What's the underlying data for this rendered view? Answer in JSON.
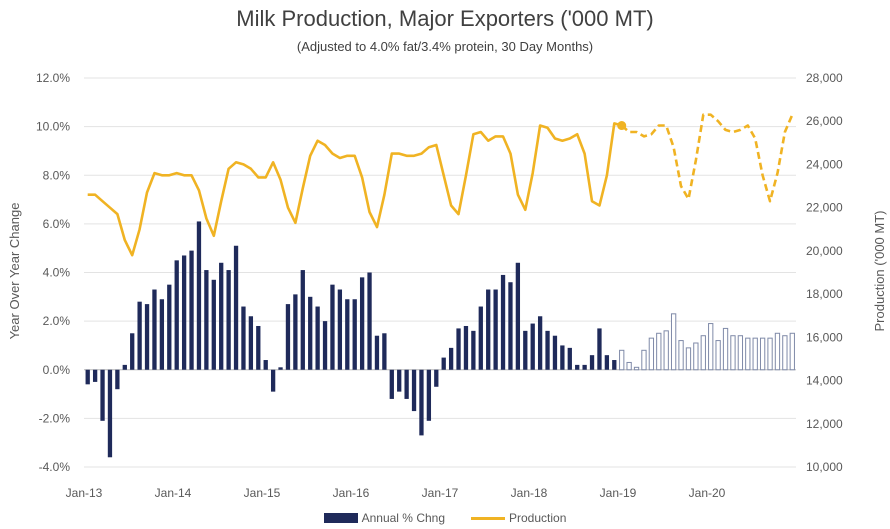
{
  "chart_data": {
    "type": "bar+line",
    "title": "Milk Production, Major Exporters ('000 MT)",
    "subtitle": "(Adjusted to 4.0% fat/3.4% protein, 30 Day Months)",
    "ylabel_left": "Year Over Year Change",
    "ylabel_right": "Production ('000 MT)",
    "y_left_ticks": [
      "12.0%",
      "10.0%",
      "8.0%",
      "6.0%",
      "4.0%",
      "2.0%",
      "0.0%",
      "-2.0%",
      "-4.0%"
    ],
    "y_left_range": [
      -4.0,
      12.0
    ],
    "y_right_ticks": [
      "28,000",
      "26,000",
      "24,000",
      "22,000",
      "20,000",
      "18,000",
      "16,000",
      "14,000",
      "12,000",
      "10,000"
    ],
    "y_right_range": [
      10000,
      28000
    ],
    "x_ticks": [
      "Jan-13",
      "Jan-14",
      "Jan-15",
      "Jan-16",
      "Jan-17",
      "Jan-18",
      "Jan-19",
      "Jan-20"
    ],
    "x_start": "Jan-13",
    "months": 96,
    "forecast_start_index": 72,
    "annual_pct_change": [
      -0.6,
      -0.5,
      -2.1,
      -3.6,
      -0.8,
      0.2,
      1.5,
      2.8,
      2.7,
      3.3,
      2.9,
      3.5,
      4.5,
      4.7,
      4.9,
      6.1,
      4.1,
      3.7,
      4.4,
      4.1,
      5.1,
      2.6,
      2.2,
      1.8,
      0.4,
      -0.9,
      0.1,
      2.7,
      3.1,
      4.1,
      3.0,
      2.6,
      2.0,
      3.5,
      3.3,
      2.9,
      2.9,
      3.8,
      4.0,
      1.4,
      1.5,
      -1.2,
      -0.9,
      -1.2,
      -1.7,
      -2.7,
      -2.1,
      -0.7,
      0.5,
      0.9,
      1.7,
      1.8,
      1.6,
      2.6,
      3.3,
      3.3,
      3.9,
      3.6,
      4.4,
      1.6,
      1.9,
      2.2,
      1.6,
      1.4,
      1.0,
      0.9,
      0.2,
      0.2,
      0.6,
      1.7,
      0.6,
      0.4,
      0.8,
      0.3,
      0.1,
      0.8,
      1.3,
      1.5,
      1.6,
      2.3,
      1.2,
      0.9,
      1.1,
      1.4,
      1.9,
      1.2,
      1.7,
      1.4,
      1.4,
      1.3,
      1.3,
      1.3,
      1.3,
      1.5,
      1.4,
      1.5
    ],
    "production": [
      22600,
      22600,
      22300,
      22000,
      21700,
      20500,
      19800,
      21000,
      22700,
      23600,
      23500,
      23500,
      23600,
      23500,
      23500,
      22800,
      21500,
      20700,
      22300,
      23800,
      24100,
      24000,
      23800,
      23400,
      23400,
      24100,
      23300,
      22000,
      21300,
      22900,
      24400,
      25100,
      24900,
      24500,
      24300,
      24400,
      24400,
      23400,
      21800,
      21100,
      22600,
      24500,
      24500,
      24400,
      24400,
      24500,
      24800,
      24900,
      23500,
      22100,
      21700,
      23500,
      25400,
      25500,
      25100,
      25300,
      25300,
      24500,
      22600,
      21900,
      23600,
      25800,
      25700,
      25200,
      25100,
      25200,
      25400,
      24500,
      22300,
      22100,
      23500,
      25900,
      25800,
      25500,
      25500,
      25300,
      25400,
      25800,
      25800,
      24800,
      23000,
      22400,
      24200,
      26300,
      26300,
      26000,
      25600,
      25500,
      25600,
      25800,
      25200,
      23500,
      22300,
      23600,
      25500,
      26300
    ],
    "series": [
      {
        "name": "Annual % Chng",
        "type": "bar",
        "color": "#1f2a5a"
      },
      {
        "name": "Production",
        "type": "line",
        "color": "#f0b323"
      }
    ],
    "legend_position": "bottom",
    "grid": "horizontal"
  }
}
